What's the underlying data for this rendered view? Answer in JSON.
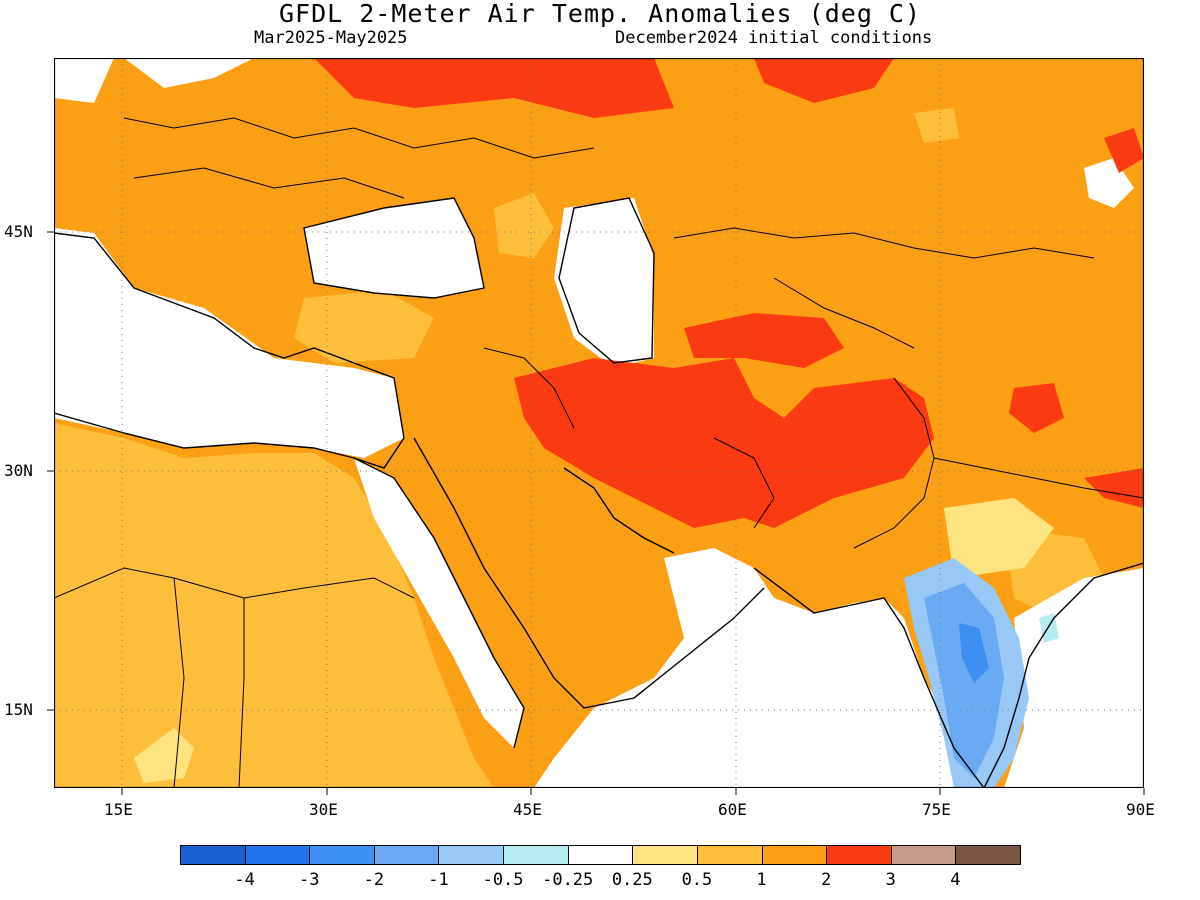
{
  "header": {
    "title": "GFDL 2-Meter Air Temp. Anomalies (deg C)",
    "period": "Mar2025-May2025",
    "init": "December2024 initial conditions"
  },
  "axes": {
    "lon_labels": [
      "15E",
      "30E",
      "45E",
      "60E",
      "75E",
      "90E"
    ],
    "lat_labels": [
      "45N",
      "30N",
      "15N"
    ]
  },
  "colorbar": {
    "colors": [
      "#1a5fd1",
      "#2573ec",
      "#3d8ff2",
      "#6aaaf3",
      "#97c8f6",
      "#b5ecf2",
      "#ffffff",
      "#fde481",
      "#fdbe3c",
      "#fb9f14",
      "#fa3a10",
      "#c59b8a",
      "#7a5544"
    ],
    "labels": [
      "-4",
      "-3",
      "-2",
      "-1",
      "-0.5",
      "-0.25",
      "0.25",
      "0.5",
      "1",
      "2",
      "3",
      "4"
    ]
  },
  "map": {
    "lon_range": [
      10,
      90
    ],
    "lat_range": [
      10,
      55
    ],
    "gridlines": "dotted",
    "field_colors": {
      "white": "#ffffff",
      "light_orange": "#fdbe3c",
      "orange": "#fb9f14",
      "red": "#fa3a10",
      "pale_yellow": "#fde481",
      "light_blue": "#97c8f6",
      "blue": "#6aaaf3",
      "dark_blue": "#3d8ff2",
      "cyan": "#b5ecf2"
    }
  }
}
